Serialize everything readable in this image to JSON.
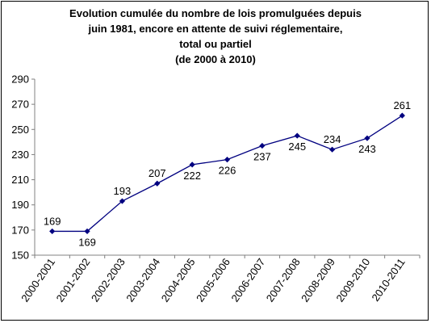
{
  "chart_data": {
    "type": "line",
    "title_lines": [
      "Evolution cumulée du nombre de lois promulguées depuis",
      "juin 1981, encore en attente de suivi réglementaire,",
      "total ou partiel",
      "(de 2000 à 2010)"
    ],
    "categories": [
      "2000-2001",
      "2001-2002",
      "2002-2003",
      "2003-2004",
      "2004-2005",
      "2005-2006",
      "2006-2007",
      "2007-2008",
      "2008-2009",
      "2009-2010",
      "2010-2011"
    ],
    "values": [
      169,
      169,
      193,
      207,
      222,
      226,
      237,
      245,
      234,
      243,
      261
    ],
    "data_labels": [
      "169",
      "169",
      "193",
      "207",
      "222",
      "226",
      "237",
      "245",
      "234",
      "243",
      "261"
    ],
    "label_positions": [
      "above",
      "below",
      "above",
      "above",
      "below",
      "below",
      "below",
      "below",
      "above",
      "below",
      "above"
    ],
    "ylim": [
      150,
      290
    ],
    "yticks": [
      150,
      170,
      190,
      210,
      230,
      250,
      270,
      290
    ],
    "grid": false,
    "legend": false,
    "colors": {
      "series": "#000080",
      "axis": "#808080",
      "text": "#000000"
    }
  }
}
